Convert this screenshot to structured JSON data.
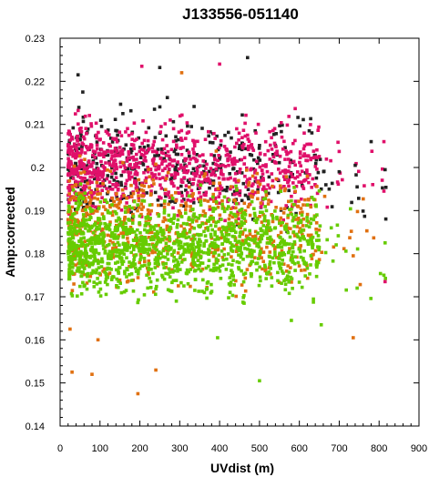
{
  "chart_data": {
    "type": "scatter",
    "title": "J133556-051140",
    "xlabel": "UVdist (m)",
    "ylabel": "Amp:corrected",
    "xlim": [
      0,
      900
    ],
    "ylim": [
      0.14,
      0.23
    ],
    "xticks": [
      "0",
      "100",
      "200",
      "300",
      "400",
      "500",
      "600",
      "700",
      "800",
      "900"
    ],
    "yticks": [
      "0.14",
      "0.15",
      "0.16",
      "0.17",
      "0.18",
      "0.19",
      "0.2",
      "0.21",
      "0.22",
      "0.23"
    ],
    "grid": false,
    "legend": "none",
    "series": [
      {
        "color": "#222222",
        "clusters": [
          {
            "x": [
              20,
              650
            ],
            "y_center": 0.2,
            "y_spread": 0.0095,
            "n": 380
          },
          {
            "x": [
              650,
              820
            ],
            "y_center": 0.196,
            "y_spread": 0.006,
            "n": 16
          }
        ]
      },
      {
        "color": "#e0106a",
        "clusters": [
          {
            "x": [
              20,
              650
            ],
            "y_center": 0.2,
            "y_spread": 0.008,
            "n": 900
          },
          {
            "x": [
              650,
              820
            ],
            "y_center": 0.198,
            "y_spread": 0.006,
            "n": 16
          }
        ]
      },
      {
        "color": "#e07010",
        "clusters": [
          {
            "x": [
              20,
              650
            ],
            "y_center": 0.186,
            "y_spread": 0.01,
            "n": 650
          },
          {
            "x": [
              650,
              820
            ],
            "y_center": 0.18,
            "y_spread": 0.01,
            "n": 12
          }
        ]
      },
      {
        "color": "#66cc00",
        "clusters": [
          {
            "x": [
              20,
              650
            ],
            "y_center": 0.182,
            "y_spread": 0.0085,
            "n": 1300
          },
          {
            "x": [
              650,
              820
            ],
            "y_center": 0.18,
            "y_spread": 0.007,
            "n": 14
          }
        ]
      }
    ],
    "outliers": [
      {
        "x": 470,
        "y": 0.2255,
        "color": "#222222"
      },
      {
        "x": 400,
        "y": 0.224,
        "color": "#e0106a"
      },
      {
        "x": 205,
        "y": 0.2235,
        "color": "#e0106a"
      },
      {
        "x": 250,
        "y": 0.2232,
        "color": "#222222"
      },
      {
        "x": 305,
        "y": 0.222,
        "color": "#e07010"
      },
      {
        "x": 45,
        "y": 0.2215,
        "color": "#222222"
      },
      {
        "x": 780,
        "y": 0.206,
        "color": "#222222"
      },
      {
        "x": 812,
        "y": 0.206,
        "color": "#e0106a"
      },
      {
        "x": 740,
        "y": 0.2005,
        "color": "#222222"
      },
      {
        "x": 815,
        "y": 0.1995,
        "color": "#222222"
      },
      {
        "x": 700,
        "y": 0.199,
        "color": "#222222"
      },
      {
        "x": 745,
        "y": 0.1955,
        "color": "#222222"
      },
      {
        "x": 812,
        "y": 0.1945,
        "color": "#e0106a"
      },
      {
        "x": 680,
        "y": 0.186,
        "color": "#66cc00"
      },
      {
        "x": 815,
        "y": 0.1825,
        "color": "#66cc00"
      },
      {
        "x": 735,
        "y": 0.1795,
        "color": "#e07010"
      },
      {
        "x": 812,
        "y": 0.175,
        "color": "#66cc00"
      },
      {
        "x": 815,
        "y": 0.1735,
        "color": "#e0106a"
      },
      {
        "x": 745,
        "y": 0.172,
        "color": "#66cc00"
      },
      {
        "x": 735,
        "y": 0.1605,
        "color": "#e07010"
      },
      {
        "x": 500,
        "y": 0.1505,
        "color": "#66cc00"
      },
      {
        "x": 30,
        "y": 0.1525,
        "color": "#e07010"
      },
      {
        "x": 80,
        "y": 0.152,
        "color": "#e07010"
      },
      {
        "x": 240,
        "y": 0.153,
        "color": "#e07010"
      },
      {
        "x": 195,
        "y": 0.1475,
        "color": "#e07010"
      },
      {
        "x": 25,
        "y": 0.1625,
        "color": "#e07010"
      },
      {
        "x": 95,
        "y": 0.16,
        "color": "#e07010"
      },
      {
        "x": 655,
        "y": 0.1635,
        "color": "#66cc00"
      },
      {
        "x": 580,
        "y": 0.1645,
        "color": "#66cc00"
      },
      {
        "x": 395,
        "y": 0.1605,
        "color": "#66cc00"
      }
    ]
  }
}
